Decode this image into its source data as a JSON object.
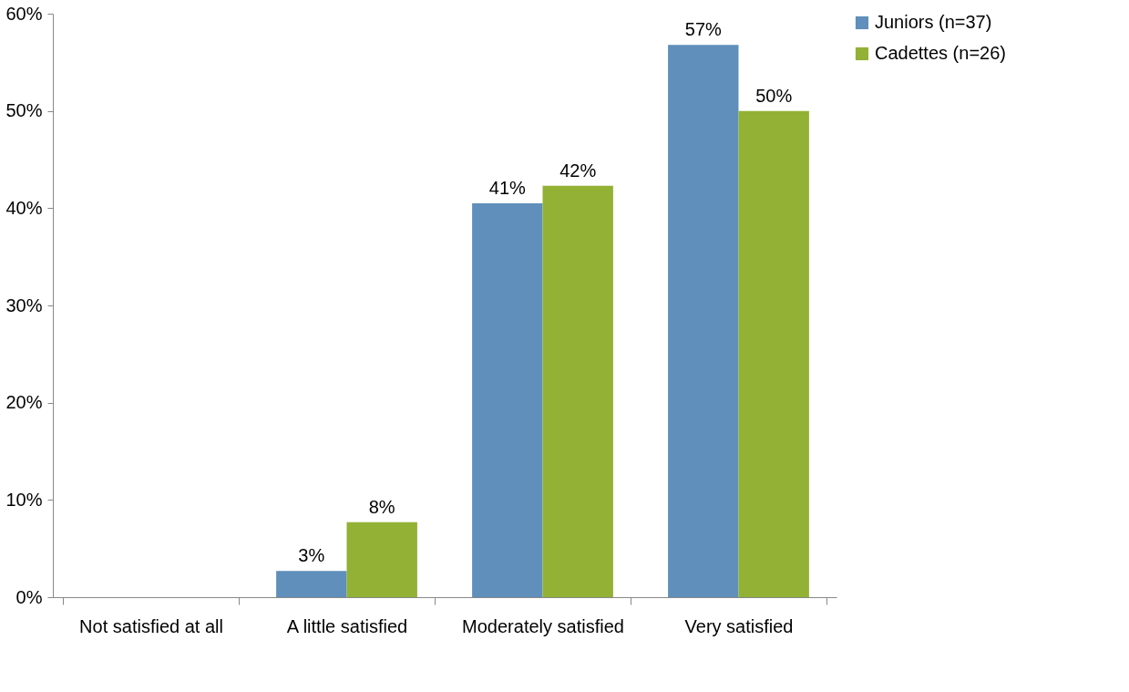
{
  "chart_data": {
    "type": "bar",
    "categories": [
      "Not satisfied at all",
      "A little satisfied",
      "Moderately satisfied",
      "Very satisfied"
    ],
    "series": [
      {
        "name": "Juniors (n=37)",
        "color": "#5f8fba",
        "values": [
          0,
          2.7,
          40.5,
          56.8
        ],
        "value_labels": [
          null,
          "3%",
          "41%",
          "57%"
        ]
      },
      {
        "name": "Cadettes (n=26)",
        "color": "#92b135",
        "values": [
          0,
          7.7,
          42.3,
          50.0
        ],
        "value_labels": [
          null,
          "8%",
          "42%",
          "50%"
        ]
      }
    ],
    "ylim": [
      0,
      60
    ],
    "yticks": [
      {
        "value": 0,
        "label": "0%"
      },
      {
        "value": 10,
        "label": "10%"
      },
      {
        "value": 20,
        "label": "20%"
      },
      {
        "value": 30,
        "label": "30%"
      },
      {
        "value": 40,
        "label": "40%"
      },
      {
        "value": 50,
        "label": "50%"
      },
      {
        "value": 60,
        "label": "60%"
      }
    ],
    "grid": false,
    "legend": "right"
  }
}
